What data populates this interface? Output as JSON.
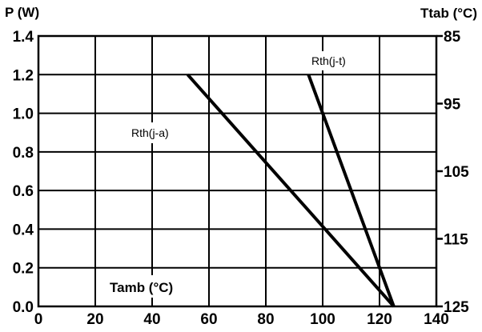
{
  "chart_data": {
    "type": "line",
    "xlabel": "Tamb (°C)",
    "ylabel": "P (W)",
    "y2label": "Ttab (°C)",
    "xlim": [
      0,
      140
    ],
    "ylim": [
      0,
      1.4
    ],
    "y2lim": [
      85,
      125
    ],
    "y2_reversed": true,
    "grid": true,
    "x_ticks": [
      "0",
      "20",
      "40",
      "60",
      "80",
      "100",
      "120",
      "140"
    ],
    "y_ticks": [
      "0.0",
      "0.2",
      "0.4",
      "0.6",
      "0.8",
      "1.0",
      "1.2",
      "1.4"
    ],
    "y2_ticks": [
      "85",
      "95",
      "105",
      "115",
      "125"
    ],
    "series": [
      {
        "name": "Rth(j-a)",
        "x": [
          52.5,
          125
        ],
        "y": [
          1.2,
          0
        ]
      },
      {
        "name": "Rth(j-t)",
        "x": [
          95,
          125
        ],
        "y": [
          1.2,
          0
        ]
      }
    ]
  }
}
